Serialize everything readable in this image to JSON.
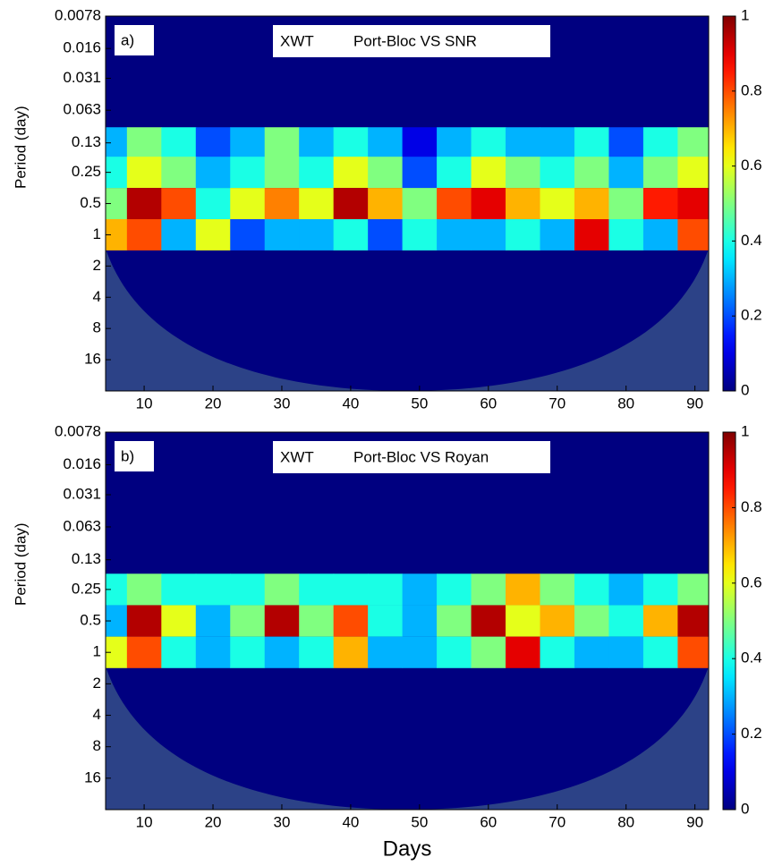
{
  "chart_data": [
    {
      "type": "heatmap",
      "panel_label": "a)",
      "title": "XWT",
      "subtitle": "Port-Bloc VS SNR",
      "ylabel": "Period (day)",
      "x": [
        5,
        10,
        15,
        20,
        25,
        30,
        35,
        40,
        45,
        50,
        55,
        60,
        65,
        70,
        75,
        80,
        85,
        90
      ],
      "y": [
        0.13,
        0.25,
        0.5,
        1
      ],
      "z": [
        [
          0.3,
          0.5,
          0.4,
          0.2,
          0.3,
          0.5,
          0.3,
          0.4,
          0.3,
          0.1,
          0.3,
          0.4,
          0.3,
          0.3,
          0.4,
          0.2,
          0.4,
          0.5
        ],
        [
          0.4,
          0.6,
          0.5,
          0.3,
          0.4,
          0.5,
          0.4,
          0.6,
          0.5,
          0.2,
          0.4,
          0.6,
          0.5,
          0.4,
          0.5,
          0.3,
          0.5,
          0.6
        ],
        [
          0.5,
          0.95,
          0.8,
          0.4,
          0.6,
          0.75,
          0.6,
          0.95,
          0.7,
          0.5,
          0.8,
          0.9,
          0.7,
          0.6,
          0.7,
          0.5,
          0.85,
          0.9
        ],
        [
          0.7,
          0.8,
          0.3,
          0.6,
          0.2,
          0.3,
          0.3,
          0.4,
          0.2,
          0.4,
          0.3,
          0.3,
          0.4,
          0.3,
          0.9,
          0.4,
          0.3,
          0.8
        ]
      ],
      "xlim": [
        4.4,
        92
      ],
      "xticks": [
        10,
        20,
        30,
        40,
        50,
        60,
        70,
        80,
        90
      ],
      "ylim": [
        0.0078,
        32
      ],
      "yticks": [
        0.0078,
        0.016,
        0.031,
        0.063,
        0.13,
        0.25,
        0.5,
        1,
        2,
        4,
        8,
        16
      ],
      "log_y": true,
      "y_reversed": true,
      "colormap": "jet",
      "clim": [
        0,
        1
      ],
      "cticks": [
        0,
        0.2,
        0.4,
        0.6,
        0.8,
        1
      ]
    },
    {
      "type": "heatmap",
      "panel_label": "b)",
      "title": "XWT",
      "subtitle": "Port-Bloc VS Royan",
      "ylabel": "Period (day)",
      "xlabel": "Days",
      "x": [
        5,
        10,
        15,
        20,
        25,
        30,
        35,
        40,
        45,
        50,
        55,
        60,
        65,
        70,
        75,
        80,
        85,
        90
      ],
      "y": [
        0.25,
        0.5,
        1
      ],
      "z": [
        [
          0.4,
          0.5,
          0.4,
          0.4,
          0.4,
          0.5,
          0.4,
          0.4,
          0.4,
          0.3,
          0.4,
          0.5,
          0.7,
          0.5,
          0.4,
          0.3,
          0.4,
          0.5
        ],
        [
          0.3,
          0.95,
          0.6,
          0.3,
          0.5,
          0.95,
          0.5,
          0.8,
          0.4,
          0.3,
          0.5,
          0.95,
          0.6,
          0.7,
          0.5,
          0.4,
          0.7,
          0.95
        ],
        [
          0.6,
          0.8,
          0.4,
          0.3,
          0.4,
          0.3,
          0.4,
          0.7,
          0.3,
          0.3,
          0.4,
          0.5,
          0.9,
          0.4,
          0.3,
          0.3,
          0.4,
          0.8
        ]
      ],
      "xlim": [
        4.4,
        92
      ],
      "xticks": [
        10,
        20,
        30,
        40,
        50,
        60,
        70,
        80,
        90
      ],
      "ylim": [
        0.0078,
        32
      ],
      "yticks": [
        0.0078,
        0.016,
        0.031,
        0.063,
        0.13,
        0.25,
        0.5,
        1,
        2,
        4,
        8,
        16
      ],
      "log_y": true,
      "y_reversed": true,
      "colormap": "jet",
      "clim": [
        0,
        1
      ],
      "cticks": [
        0,
        0.2,
        0.4,
        0.6,
        0.8,
        1
      ]
    }
  ]
}
